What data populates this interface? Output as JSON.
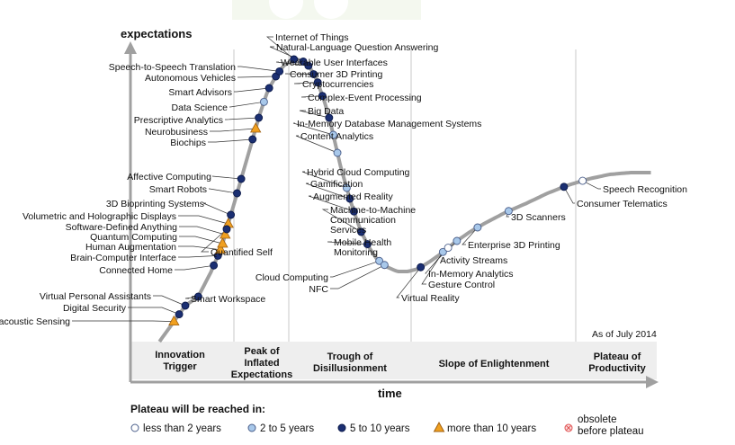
{
  "chart_data": {
    "type": "scatter",
    "title": "",
    "xlabel": "time",
    "ylabel": "expectations",
    "as_of": "As of July 2014",
    "phases": [
      "Innovation Trigger",
      "Peak of Inflated Expectations",
      "Trough of Disillusionment",
      "Slope of Enlightenment",
      "Plateau of Productivity"
    ],
    "legend_title": "Plateau will be reached in:",
    "legend": [
      {
        "key": "lt2",
        "label": "less than 2 years"
      },
      {
        "key": "2to5",
        "label": "2 to 5 years"
      },
      {
        "key": "5to10",
        "label": "5 to 10 years"
      },
      {
        "key": "gt10",
        "label": "more than 10 years"
      },
      {
        "key": "obsolete",
        "label": "obsolete before plateau"
      }
    ],
    "colors": {
      "lt2": "#ffffff",
      "2to5": "#a8c8ea",
      "5to10": "#1b2f72",
      "gt10": "#f0a020",
      "obsolete": "#e05050",
      "curve": "#a0a0a0"
    },
    "points": [
      {
        "t": 0.058,
        "name": "Bioacoustic Sensing",
        "cat": "gt10"
      },
      {
        "t": 0.068,
        "name": "Digital Security",
        "cat": "5to10"
      },
      {
        "t": 0.08,
        "name": "Virtual Personal Assistants",
        "cat": "5to10"
      },
      {
        "t": 0.105,
        "name": "Smart Workspace",
        "cat": "5to10"
      },
      {
        "t": 0.135,
        "name": "Connected Home",
        "cat": "5to10"
      },
      {
        "t": 0.143,
        "name": "Brain-Computer Interface",
        "cat": "5to10"
      },
      {
        "t": 0.148,
        "name": "Human Augmentation",
        "cat": "gt10"
      },
      {
        "t": 0.152,
        "name": "Quantum Computing",
        "cat": "gt10"
      },
      {
        "t": 0.157,
        "name": "Software-Defined Anything",
        "cat": "gt10"
      },
      {
        "t": 0.163,
        "name": "Volumetric and Holographic Displays",
        "cat": "gt10"
      },
      {
        "t": 0.168,
        "name": "3D Bioprinting Systems",
        "cat": "5to10"
      },
      {
        "t": 0.16,
        "name": "Quantified Self",
        "cat": "5to10"
      },
      {
        "t": 0.18,
        "name": "Smart Robots",
        "cat": "5to10"
      },
      {
        "t": 0.188,
        "name": "Affective Computing",
        "cat": "5to10"
      },
      {
        "t": 0.21,
        "name": "Biochips",
        "cat": "5to10"
      },
      {
        "t": 0.216,
        "name": "Neurobusiness",
        "cat": "gt10"
      },
      {
        "t": 0.222,
        "name": "Prescriptive Analytics",
        "cat": "5to10"
      },
      {
        "t": 0.232,
        "name": "Data Science",
        "cat": "2to5"
      },
      {
        "t": 0.242,
        "name": "Smart Advisors",
        "cat": "5to10"
      },
      {
        "t": 0.255,
        "name": "Autonomous Vehicles",
        "cat": "5to10"
      },
      {
        "t": 0.262,
        "name": "Speech-to-Speech Translation",
        "cat": "5to10"
      },
      {
        "t": 0.29,
        "name": "Internet of Things",
        "cat": "5to10"
      },
      {
        "t": 0.308,
        "name": "Natural-Language Question Answering",
        "cat": "5to10"
      },
      {
        "t": 0.318,
        "name": "Wearable User Interfaces",
        "cat": "5to10"
      },
      {
        "t": 0.328,
        "name": "Consumer 3D Printing",
        "cat": "5to10"
      },
      {
        "t": 0.336,
        "name": "Cryptocurrencies",
        "cat": "5to10"
      },
      {
        "t": 0.345,
        "name": "Complex-Event Processing",
        "cat": "5to10"
      },
      {
        "t": 0.358,
        "name": "Big Data",
        "cat": "5to10"
      },
      {
        "t": 0.366,
        "name": "In-Memory Database Management Systems",
        "cat": "2to5"
      },
      {
        "t": 0.374,
        "name": "Content Analytics",
        "cat": "2to5"
      },
      {
        "t": 0.392,
        "name": "Hybrid Cloud Computing",
        "cat": "2to5"
      },
      {
        "t": 0.398,
        "name": "Gamification",
        "cat": "5to10"
      },
      {
        "t": 0.406,
        "name": "Augmented Reality",
        "cat": "5to10"
      },
      {
        "t": 0.42,
        "name": "Machine-to-Machine Communication Services",
        "cat": "5to10"
      },
      {
        "t": 0.432,
        "name": "Mobile Health Monitoring",
        "cat": "5to10"
      },
      {
        "t": 0.455,
        "name": "Cloud Computing",
        "cat": "2to5"
      },
      {
        "t": 0.465,
        "name": "NFC",
        "cat": "2to5"
      },
      {
        "t": 0.535,
        "name": "Virtual Reality",
        "cat": "5to10"
      },
      {
        "t": 0.578,
        "name": "Gesture Control",
        "cat": "2to5"
      },
      {
        "t": 0.588,
        "name": "In-Memory Analytics",
        "cat": "lt2"
      },
      {
        "t": 0.605,
        "name": "Activity Streams",
        "cat": "2to5"
      },
      {
        "t": 0.645,
        "name": "Enterprise 3D Printing",
        "cat": "2to5"
      },
      {
        "t": 0.705,
        "name": "3D Scanners",
        "cat": "2to5"
      },
      {
        "t": 0.812,
        "name": "Consumer Telematics",
        "cat": "5to10"
      },
      {
        "t": 0.848,
        "name": "Speech Recognition",
        "cat": "lt2"
      }
    ]
  }
}
